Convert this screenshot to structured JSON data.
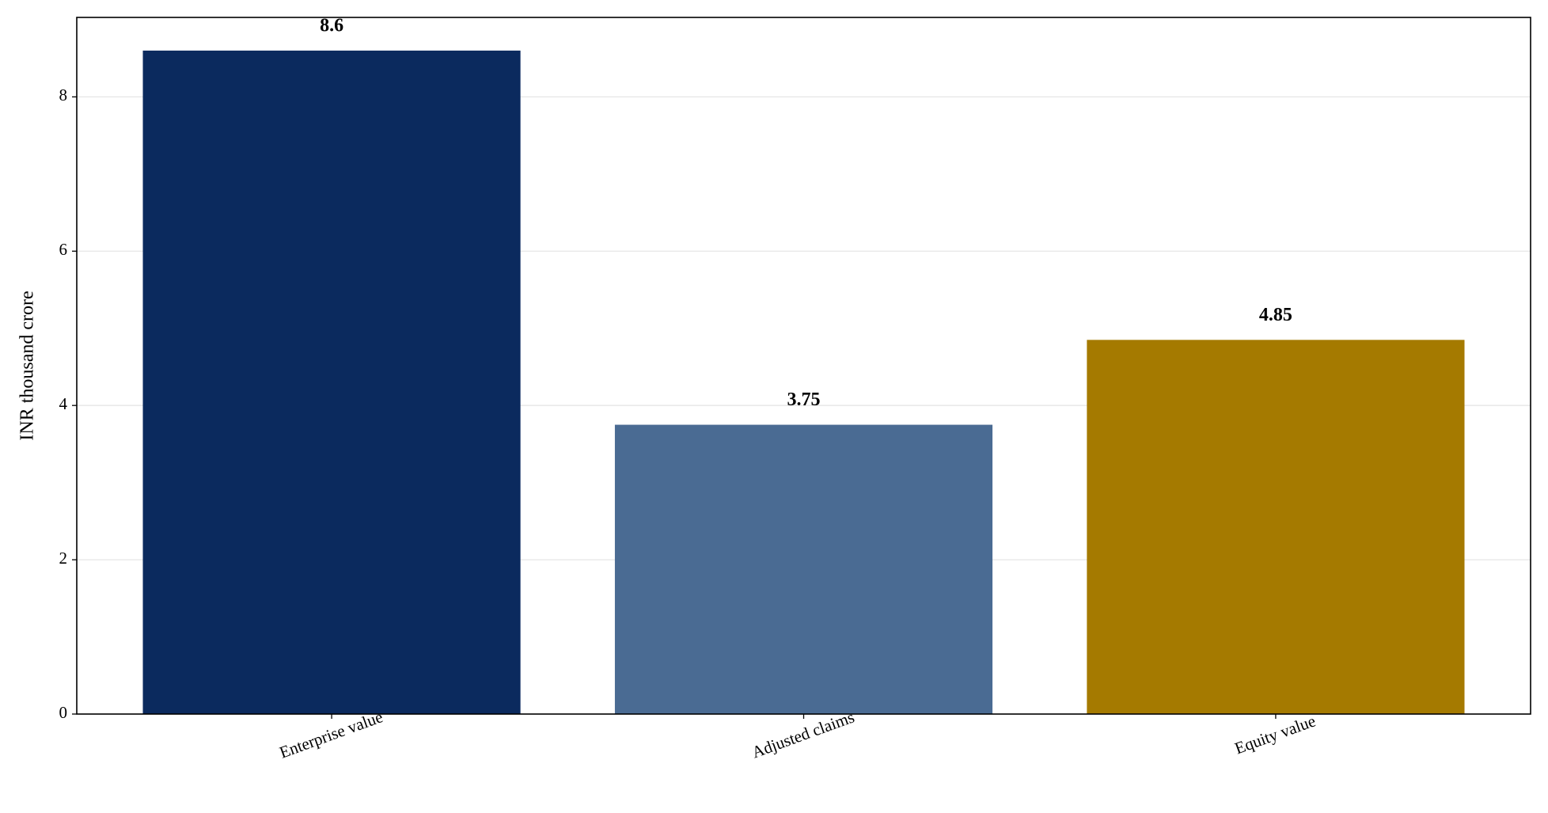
{
  "chart_data": {
    "type": "bar",
    "y_label": "INR thousand crore",
    "categories": [
      "Enterprise value",
      "Adjusted claims",
      "Equity value"
    ],
    "values": [
      8.6,
      3.75,
      4.85
    ],
    "colors": [
      "#0b2a5e",
      "#4a6b93",
      "#a57a00"
    ],
    "ylim": [
      0,
      9.03
    ],
    "yticks": [
      0,
      2,
      4,
      6,
      8
    ],
    "grid": true
  }
}
